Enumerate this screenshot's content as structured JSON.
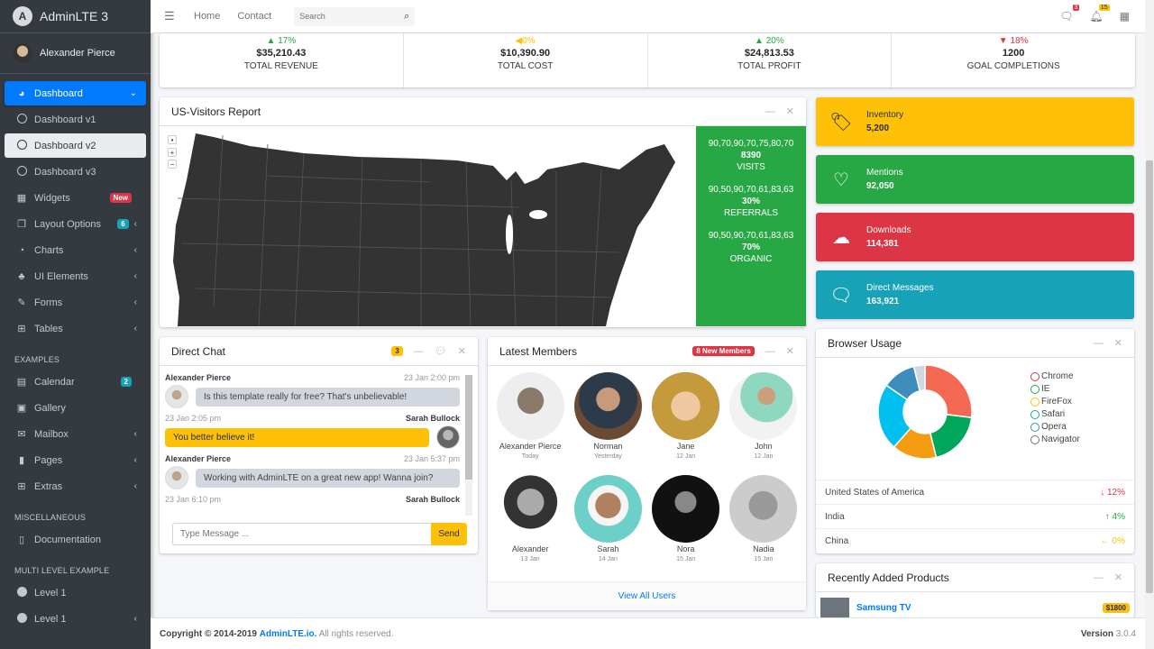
{
  "brand": {
    "logo_letter": "A",
    "title": "AdminLTE 3"
  },
  "user": {
    "name": "Alexander Pierce"
  },
  "sidebar": {
    "items": [
      {
        "label": "Dashboard",
        "icon": "tachometer-icon"
      },
      {
        "label": "Dashboard v1",
        "icon": "circle-icon"
      },
      {
        "label": "Dashboard v2",
        "icon": "circle-icon"
      },
      {
        "label": "Dashboard v3",
        "icon": "circle-icon"
      },
      {
        "label": "Widgets",
        "icon": "th-icon",
        "badge": "New"
      },
      {
        "label": "Layout Options",
        "icon": "copy-icon",
        "badge": "6"
      },
      {
        "label": "Charts",
        "icon": "chart-pie-icon"
      },
      {
        "label": "UI Elements",
        "icon": "tree-icon"
      },
      {
        "label": "Forms",
        "icon": "edit-icon"
      },
      {
        "label": "Tables",
        "icon": "table-icon"
      }
    ],
    "examples_header": "EXAMPLES",
    "examples": [
      {
        "label": "Calendar",
        "icon": "calendar-icon",
        "badge": "2"
      },
      {
        "label": "Gallery",
        "icon": "image-icon"
      },
      {
        "label": "Mailbox",
        "icon": "envelope-icon"
      },
      {
        "label": "Pages",
        "icon": "book-icon"
      },
      {
        "label": "Extras",
        "icon": "plus-square-icon"
      }
    ],
    "misc_header": "MISCELLANEOUS",
    "misc": [
      {
        "label": "Documentation",
        "icon": "file-icon"
      }
    ],
    "multi_header": "MULTI LEVEL EXAMPLE",
    "multi": [
      {
        "label": "Level 1"
      },
      {
        "label": "Level 1"
      }
    ]
  },
  "topbar": {
    "links": [
      "Home",
      "Contact"
    ],
    "search_placeholder": "Search",
    "messages_badge": "3",
    "notifications_badge": "15"
  },
  "stats": [
    {
      "pct": "▲ 17%",
      "value": "$35,210.43",
      "label": "TOTAL REVENUE",
      "color": "#28a745"
    },
    {
      "pct": "◀0%",
      "value": "$10,390.90",
      "label": "TOTAL COST",
      "color": "#ffc107"
    },
    {
      "pct": "▲ 20%",
      "value": "$24,813.53",
      "label": "TOTAL PROFIT",
      "color": "#28a745"
    },
    {
      "pct": "▼ 18%",
      "value": "1200",
      "label": "GOAL COMPLETIONS",
      "color": "#dc3545"
    }
  ],
  "visitors": {
    "title": "US-Visitors Report",
    "groups": [
      {
        "spark": "90,70,90,70,75,80,70",
        "value": "8390",
        "label": "VISITS"
      },
      {
        "spark": "90,50,90,70,61,83,63",
        "value": "30%",
        "label": "REFERRALS"
      },
      {
        "spark": "90,50,90,70,61,83,63",
        "value": "70%",
        "label": "ORGANIC"
      }
    ]
  },
  "info_boxes": [
    {
      "label": "Inventory",
      "value": "5,200",
      "icon": "tag-icon",
      "bg": "#ffc107",
      "fg": "#1f2d3d"
    },
    {
      "label": "Mentions",
      "value": "92,050",
      "icon": "heart-icon",
      "bg": "#28a745",
      "fg": "#ffffff"
    },
    {
      "label": "Downloads",
      "value": "114,381",
      "icon": "cloud-download-icon",
      "bg": "#dc3545",
      "fg": "#ffffff"
    },
    {
      "label": "Direct Messages",
      "value": "163,921",
      "icon": "comment-icon",
      "bg": "#17a2b8",
      "fg": "#ffffff"
    }
  ],
  "chat": {
    "title": "Direct Chat",
    "badge": "3",
    "messages": [
      {
        "name": "Alexander Pierce",
        "time": "23 Jan 2:00 pm",
        "text": "Is this template really for free? That's unbelievable!",
        "side": "left"
      },
      {
        "name": "Sarah Bullock",
        "time": "23 Jan 2:05 pm",
        "text": "You better believe it!",
        "side": "right"
      },
      {
        "name": "Alexander Pierce",
        "time": "23 Jan 5:37 pm",
        "text": "Working with AdminLTE on a great new app! Wanna join?",
        "side": "left"
      },
      {
        "name": "Sarah Bullock",
        "time": "23 Jan 6:10 pm",
        "text": "",
        "side": "right"
      }
    ],
    "input_placeholder": "Type Message ...",
    "send_label": "Send"
  },
  "members": {
    "title": "Latest Members",
    "badge": "8 New Members",
    "list": [
      {
        "name": "Alexander Pierce",
        "date": "Today"
      },
      {
        "name": "Norman",
        "date": "Yesterday"
      },
      {
        "name": "Jane",
        "date": "12 Jan"
      },
      {
        "name": "John",
        "date": "12 Jan"
      },
      {
        "name": "Alexander",
        "date": "13 Jan"
      },
      {
        "name": "Sarah",
        "date": "14 Jan"
      },
      {
        "name": "Nora",
        "date": "15 Jan"
      },
      {
        "name": "Nadia",
        "date": "15 Jan"
      }
    ],
    "footer_link": "View All Users"
  },
  "browser_usage": {
    "title": "Browser Usage",
    "legend": [
      {
        "label": "Chrome",
        "color": "#dc3545"
      },
      {
        "label": "IE",
        "color": "#28a745"
      },
      {
        "label": "FireFox",
        "color": "#ffc107"
      },
      {
        "label": "Safari",
        "color": "#17a2b8"
      },
      {
        "label": "Opera",
        "color": "#3c8dbc"
      },
      {
        "label": "Navigator",
        "color": "#6c757d"
      }
    ],
    "countries": [
      {
        "name": "United States of America",
        "change": "↓ 12%",
        "color": "#dc3545"
      },
      {
        "name": "India",
        "change": "↑ 4%",
        "color": "#28a745"
      },
      {
        "name": "China",
        "change": "← 0%",
        "color": "#ffc107"
      }
    ]
  },
  "chart_data": {
    "type": "pie",
    "title": "Browser Usage",
    "categories": [
      "Chrome",
      "IE",
      "FireFox",
      "Safari",
      "Opera",
      "Navigator"
    ],
    "values": [
      700,
      500,
      400,
      600,
      300,
      100
    ],
    "colors": [
      "#f56954",
      "#00a65a",
      "#f39c12",
      "#00c0ef",
      "#3c8dbc",
      "#d2d6de"
    ],
    "legend_position": "right"
  },
  "products": {
    "title": "Recently Added Products",
    "items": [
      {
        "name": "Samsung TV",
        "price": "$1800"
      }
    ]
  },
  "footer": {
    "copyright": "Copyright © 2014-2019",
    "link": "AdminLTE.io.",
    "rights": "All rights reserved.",
    "version_label": "Version",
    "version": "3.0.4"
  }
}
